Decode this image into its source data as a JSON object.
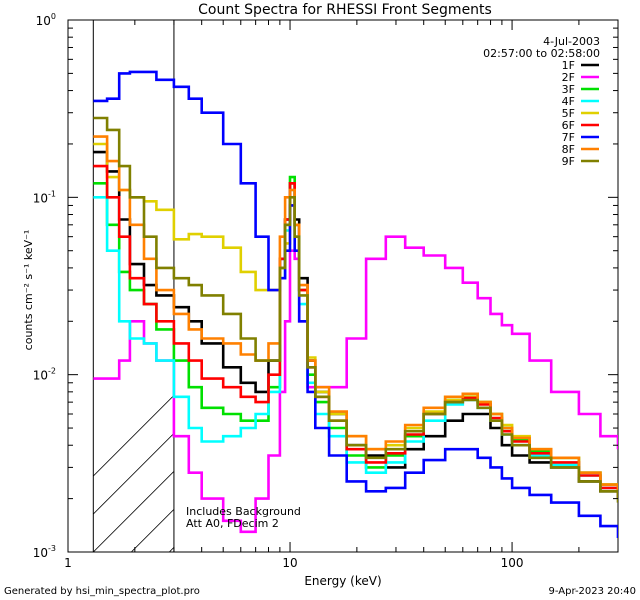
{
  "chart_data": {
    "type": "line",
    "title": "Count Spectra for RHESSI Front Segments",
    "xlabel": "Energy (keV)",
    "ylabel": "counts cm⁻² s⁻¹ keV⁻¹",
    "x_scale": "log",
    "y_scale": "log",
    "xlim": [
      1,
      300
    ],
    "ylim": [
      0.001,
      1.0
    ],
    "x_ticks": [
      {
        "value": 1,
        "label": "1"
      },
      {
        "value": 10,
        "label": "10"
      },
      {
        "value": 100,
        "label": "100"
      }
    ],
    "y_ticks": [
      {
        "value": 0.001,
        "base": "10",
        "exp": "-3"
      },
      {
        "value": 0.01,
        "base": "10",
        "exp": "-2"
      },
      {
        "value": 0.1,
        "base": "10",
        "exp": "-1"
      },
      {
        "value": 1.0,
        "base": "10",
        "exp": "0"
      }
    ],
    "hatched_region": {
      "x_from": 1.3,
      "x_to": 3.0
    },
    "date": "4-Jul-2003",
    "time_range": "02:57:00 to 02:58:00",
    "annotation_lines": [
      "Includes Background",
      "Att A0, FDecim 2"
    ],
    "footer_left": "Generated by hsi_min_spectra_plot.pro",
    "footer_right": "9-Apr-2023 20:40",
    "legend_position": "top-right",
    "series": [
      {
        "name": "1F",
        "color": "#000000",
        "x": [
          1.3,
          1.5,
          1.7,
          1.9,
          2.2,
          2.5,
          3.0,
          3.5,
          4.0,
          5.0,
          6.0,
          7.0,
          8.0,
          9.0,
          9.5,
          10.0,
          10.5,
          11.0,
          12.0,
          13.0,
          15.0,
          18.0,
          22.0,
          27.0,
          33.0,
          40.0,
          50.0,
          60.0,
          70.0,
          80.0,
          90.0,
          100.0,
          120.0,
          150.0,
          200.0,
          250.0,
          300.0
        ],
        "y": [
          0.18,
          0.14,
          0.075,
          0.042,
          0.032,
          0.028,
          0.024,
          0.02,
          0.015,
          0.011,
          0.009,
          0.008,
          0.012,
          0.045,
          0.075,
          0.12,
          0.075,
          0.035,
          0.012,
          0.008,
          0.006,
          0.004,
          0.0035,
          0.003,
          0.0038,
          0.0045,
          0.0055,
          0.006,
          0.006,
          0.005,
          0.004,
          0.0035,
          0.0032,
          0.003,
          0.0025,
          0.0022,
          0.002
        ]
      },
      {
        "name": "2F",
        "color": "#ff00ff",
        "x": [
          1.3,
          1.5,
          1.7,
          1.9,
          2.2,
          2.5,
          3.0,
          3.5,
          4.0,
          5.0,
          6.0,
          7.0,
          8.0,
          9.0,
          9.5,
          10.0,
          10.5,
          11.0,
          12.0,
          13.0,
          15.0,
          18.0,
          22.0,
          27.0,
          33.0,
          40.0,
          50.0,
          60.0,
          70.0,
          80.0,
          90.0,
          100.0,
          120.0,
          150.0,
          200.0,
          250.0,
          300.0
        ],
        "y": [
          0.0095,
          0.0095,
          0.012,
          0.02,
          0.015,
          0.012,
          0.0045,
          0.0028,
          0.002,
          0.0015,
          0.0013,
          0.002,
          0.0035,
          0.008,
          0.02,
          0.05,
          0.045,
          0.02,
          0.0085,
          0.0085,
          0.0085,
          0.016,
          0.045,
          0.06,
          0.052,
          0.047,
          0.04,
          0.033,
          0.027,
          0.022,
          0.019,
          0.017,
          0.012,
          0.008,
          0.006,
          0.0045,
          0.0038
        ]
      },
      {
        "name": "3F",
        "color": "#00e000",
        "x": [
          1.3,
          1.5,
          1.7,
          1.9,
          2.2,
          2.5,
          3.0,
          3.5,
          4.0,
          5.0,
          6.0,
          7.0,
          8.0,
          9.0,
          9.5,
          10.0,
          10.5,
          11.0,
          12.0,
          13.0,
          15.0,
          18.0,
          22.0,
          27.0,
          33.0,
          40.0,
          50.0,
          60.0,
          70.0,
          80.0,
          90.0,
          100.0,
          120.0,
          150.0,
          200.0,
          250.0,
          300.0
        ],
        "y": [
          0.12,
          0.07,
          0.038,
          0.03,
          0.025,
          0.018,
          0.012,
          0.0085,
          0.0065,
          0.006,
          0.0055,
          0.0055,
          0.0085,
          0.04,
          0.07,
          0.13,
          0.07,
          0.03,
          0.01,
          0.007,
          0.005,
          0.0035,
          0.003,
          0.0035,
          0.0045,
          0.006,
          0.0075,
          0.0078,
          0.007,
          0.006,
          0.005,
          0.0043,
          0.0037,
          0.0034,
          0.0028,
          0.0024,
          0.0021
        ]
      },
      {
        "name": "4F",
        "color": "#00ffff",
        "x": [
          1.3,
          1.5,
          1.7,
          1.9,
          2.2,
          2.5,
          3.0,
          3.5,
          4.0,
          5.0,
          6.0,
          7.0,
          8.0,
          9.0,
          9.5,
          10.0,
          10.5,
          11.0,
          12.0,
          13.0,
          15.0,
          18.0,
          22.0,
          27.0,
          33.0,
          40.0,
          50.0,
          60.0,
          70.0,
          80.0,
          90.0,
          100.0,
          120.0,
          150.0,
          200.0,
          250.0,
          300.0
        ],
        "y": [
          0.1,
          0.05,
          0.02,
          0.016,
          0.015,
          0.012,
          0.0075,
          0.005,
          0.0042,
          0.0045,
          0.005,
          0.006,
          0.008,
          0.035,
          0.065,
          0.11,
          0.06,
          0.025,
          0.009,
          0.006,
          0.0045,
          0.0032,
          0.0028,
          0.0032,
          0.0042,
          0.0055,
          0.0068,
          0.0072,
          0.0065,
          0.0055,
          0.0046,
          0.004,
          0.0035,
          0.0031,
          0.0027,
          0.0023,
          0.002
        ]
      },
      {
        "name": "5F",
        "color": "#e0d000",
        "x": [
          1.3,
          1.5,
          1.7,
          1.9,
          2.2,
          2.5,
          3.0,
          3.5,
          4.0,
          5.0,
          6.0,
          7.0,
          8.0,
          9.0,
          9.5,
          10.0,
          10.5,
          11.0,
          12.0,
          13.0,
          15.0,
          18.0,
          22.0,
          27.0,
          33.0,
          40.0,
          50.0,
          60.0,
          70.0,
          80.0,
          90.0,
          100.0,
          120.0,
          150.0,
          200.0,
          250.0,
          300.0
        ],
        "y": [
          0.2,
          0.13,
          0.11,
          0.1,
          0.095,
          0.085,
          0.058,
          0.062,
          0.06,
          0.052,
          0.038,
          0.03,
          0.03,
          0.04,
          0.055,
          0.09,
          0.06,
          0.03,
          0.0125,
          0.008,
          0.006,
          0.0045,
          0.0038,
          0.004,
          0.005,
          0.0062,
          0.0072,
          0.0075,
          0.007,
          0.006,
          0.0052,
          0.0045,
          0.0038,
          0.0034,
          0.0028,
          0.0024,
          0.0021
        ]
      },
      {
        "name": "6F",
        "color": "#ff0000",
        "x": [
          1.3,
          1.5,
          1.7,
          1.9,
          2.2,
          2.5,
          3.0,
          3.5,
          4.0,
          5.0,
          6.0,
          7.0,
          8.0,
          9.0,
          9.5,
          10.0,
          10.5,
          11.0,
          12.0,
          13.0,
          15.0,
          18.0,
          22.0,
          27.0,
          33.0,
          40.0,
          50.0,
          60.0,
          70.0,
          80.0,
          90.0,
          100.0,
          120.0,
          150.0,
          200.0,
          250.0,
          300.0
        ],
        "y": [
          0.15,
          0.1,
          0.06,
          0.035,
          0.025,
          0.02,
          0.015,
          0.012,
          0.0095,
          0.0085,
          0.0075,
          0.007,
          0.01,
          0.045,
          0.075,
          0.12,
          0.07,
          0.03,
          0.011,
          0.0075,
          0.0055,
          0.0038,
          0.0032,
          0.0036,
          0.0046,
          0.006,
          0.007,
          0.0074,
          0.0068,
          0.0057,
          0.0048,
          0.0042,
          0.0036,
          0.0032,
          0.0027,
          0.0023,
          0.002
        ]
      },
      {
        "name": "7F",
        "color": "#0000ff",
        "x": [
          1.3,
          1.5,
          1.7,
          1.9,
          2.2,
          2.5,
          3.0,
          3.5,
          4.0,
          5.0,
          6.0,
          7.0,
          8.0,
          9.0,
          9.5,
          10.0,
          10.5,
          11.0,
          12.0,
          13.0,
          15.0,
          18.0,
          22.0,
          27.0,
          33.0,
          40.0,
          50.0,
          60.0,
          70.0,
          80.0,
          90.0,
          100.0,
          120.0,
          150.0,
          200.0,
          250.0,
          300.0
        ],
        "y": [
          0.35,
          0.36,
          0.5,
          0.51,
          0.51,
          0.46,
          0.42,
          0.36,
          0.3,
          0.2,
          0.12,
          0.06,
          0.03,
          0.035,
          0.05,
          0.09,
          0.05,
          0.02,
          0.008,
          0.005,
          0.0035,
          0.0025,
          0.0022,
          0.0023,
          0.0028,
          0.0033,
          0.0038,
          0.0038,
          0.0034,
          0.003,
          0.0026,
          0.0023,
          0.0021,
          0.0019,
          0.0016,
          0.0014,
          0.0012
        ]
      },
      {
        "name": "8F",
        "color": "#ff8000",
        "x": [
          1.3,
          1.5,
          1.7,
          1.9,
          2.2,
          2.5,
          3.0,
          3.5,
          4.0,
          5.0,
          6.0,
          7.0,
          8.0,
          9.0,
          9.5,
          10.0,
          10.5,
          11.0,
          12.0,
          13.0,
          15.0,
          18.0,
          22.0,
          27.0,
          33.0,
          40.0,
          50.0,
          60.0,
          70.0,
          80.0,
          90.0,
          100.0,
          120.0,
          150.0,
          200.0,
          250.0,
          300.0
        ],
        "y": [
          0.22,
          0.16,
          0.11,
          0.07,
          0.045,
          0.03,
          0.022,
          0.018,
          0.016,
          0.015,
          0.013,
          0.012,
          0.015,
          0.06,
          0.1,
          0.11,
          0.07,
          0.032,
          0.012,
          0.0085,
          0.0062,
          0.0045,
          0.0038,
          0.0042,
          0.0052,
          0.0065,
          0.0075,
          0.0078,
          0.007,
          0.006,
          0.005,
          0.0044,
          0.0038,
          0.0034,
          0.0028,
          0.0024,
          0.0021
        ]
      },
      {
        "name": "9F",
        "color": "#808000",
        "x": [
          1.3,
          1.5,
          1.7,
          1.9,
          2.2,
          2.5,
          3.0,
          3.5,
          4.0,
          5.0,
          6.0,
          7.0,
          8.0,
          9.0,
          9.5,
          10.0,
          10.5,
          11.0,
          12.0,
          13.0,
          15.0,
          18.0,
          22.0,
          27.0,
          33.0,
          40.0,
          50.0,
          60.0,
          70.0,
          80.0,
          90.0,
          100.0,
          120.0,
          150.0,
          200.0,
          250.0,
          300.0
        ],
        "y": [
          0.28,
          0.24,
          0.15,
          0.1,
          0.06,
          0.04,
          0.035,
          0.032,
          0.028,
          0.022,
          0.016,
          0.012,
          0.012,
          0.04,
          0.07,
          0.1,
          0.06,
          0.028,
          0.011,
          0.0075,
          0.0055,
          0.004,
          0.0034,
          0.0038,
          0.0048,
          0.006,
          0.007,
          0.0072,
          0.0065,
          0.0055,
          0.0046,
          0.004,
          0.0034,
          0.003,
          0.0025,
          0.0022,
          0.0019
        ]
      }
    ]
  }
}
